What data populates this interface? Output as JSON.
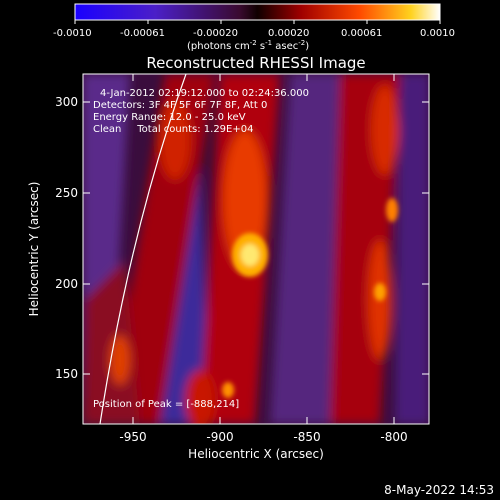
{
  "colorbar": {
    "tick_labels": [
      "-0.0010",
      "-0.00061",
      "-0.00020",
      "0.00020",
      "0.00061",
      "0.0010"
    ],
    "unit_prefix": "(photons cm",
    "unit_exp1": "-2",
    "unit_mid": " s",
    "unit_exp2": "-1",
    "unit_mid2": " asec",
    "unit_exp3": "-2",
    "unit_suffix": ")"
  },
  "image": {
    "title": "Reconstructed RHESSI Image",
    "info_lines": [
      "4-Jan-2012 02:19:12.000 to 02:24:36.000",
      "Detectors: 3F 4F 5F 6F 7F 8F, Att 0",
      "Energy Range: 12.0 - 25.0 keV",
      "Clean     Total counts: 1.29E+04"
    ],
    "peak_label": "Position of Peak = [-888,214]"
  },
  "axes": {
    "xlabel": "Heliocentric X (arcsec)",
    "ylabel": "Heliocentric Y (arcsec)",
    "x_ticks": [
      "-950",
      "-900",
      "-850",
      "-800"
    ],
    "y_ticks": [
      "150",
      "200",
      "250",
      "300"
    ]
  },
  "footer": {
    "timestamp": "8-May-2022 14:53"
  },
  "colors": {
    "background": "#000000",
    "text": "#ffffff"
  }
}
